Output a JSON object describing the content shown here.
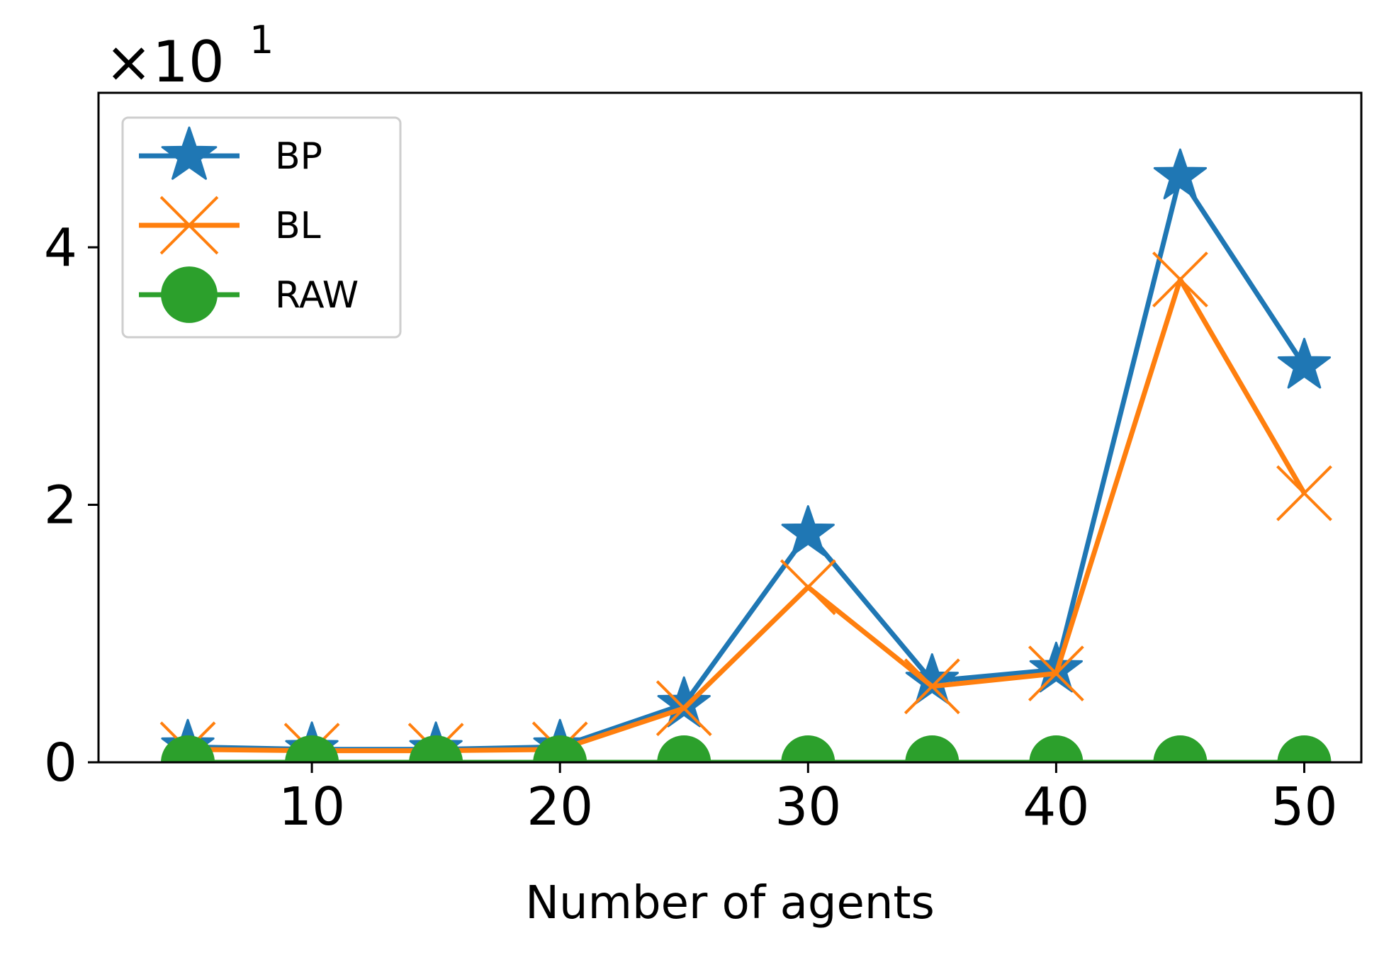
{
  "chart_data": {
    "type": "line",
    "xlabel": "Number of agents",
    "ylabel": "",
    "y_offset_base": "×10",
    "y_offset_exponent": "1",
    "x": [
      5,
      10,
      15,
      20,
      25,
      30,
      35,
      40,
      45,
      50
    ],
    "xlim": [
      1.4,
      52.3
    ],
    "ylim": [
      0,
      5.2
    ],
    "x_ticks": [
      10,
      20,
      30,
      40,
      50
    ],
    "y_ticks": [
      0,
      2,
      4
    ],
    "legend_position": "upper-left",
    "grid": false,
    "series": [
      {
        "name": "BP",
        "color": "#1f77b4",
        "marker": "star",
        "values": [
          0.12,
          0.1,
          0.1,
          0.12,
          0.45,
          1.78,
          0.63,
          0.72,
          4.55,
          3.08
        ]
      },
      {
        "name": "BL",
        "color": "#ff7f0e",
        "marker": "x",
        "values": [
          0.1,
          0.09,
          0.09,
          0.1,
          0.42,
          1.36,
          0.59,
          0.69,
          3.75,
          2.09
        ]
      },
      {
        "name": "RAW",
        "color": "#2ca02c",
        "marker": "circle",
        "values": [
          0.0,
          0.0,
          0.0,
          0.0,
          0.0,
          0.0,
          0.0,
          0.0,
          0.0,
          0.0
        ]
      }
    ]
  }
}
